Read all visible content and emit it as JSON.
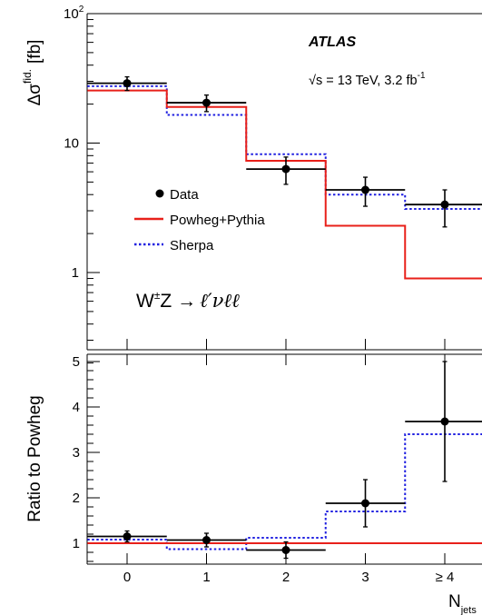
{
  "chart_data": [
    {
      "type": "step",
      "panel": "top",
      "ylabel": "Δσ",
      "ylabel_sup": "fid.",
      "ylabel_unit": "[fb]",
      "yscale": "log",
      "ylim": [
        0.2,
        100
      ],
      "yticks": [
        {
          "value": 100,
          "label": "10",
          "sup": "2"
        },
        {
          "value": 10,
          "label": "10",
          "sup": ""
        },
        {
          "value": 1,
          "label": "1",
          "sup": ""
        }
      ],
      "experiment": "ATLAS",
      "energy_text": "√s = 13 TeV, 3.2 fb",
      "energy_sup": "-1",
      "process": "W±Z → ℓ′νℓℓ",
      "process_parts": {
        "w": "W",
        "pm": "±",
        "z": "Z →",
        "leptons": "ℓ′νℓℓ"
      },
      "legend_placement": "center-left",
      "legend": {
        "data": "Data",
        "powheg": "Powheg+Pythia",
        "sherpa": "Sherpa"
      },
      "data": {
        "x": [
          0,
          1,
          2,
          3,
          4
        ],
        "y": [
          29,
          20.5,
          6.3,
          4.35,
          3.35
        ],
        "err_up": [
          3.5,
          3.0,
          1.5,
          1.1,
          1.0
        ],
        "err_down": [
          3.5,
          3.0,
          1.5,
          1.1,
          1.1
        ]
      },
      "series": [
        {
          "name": "Powheg+Pythia",
          "color": "#e8201a",
          "style": "solid",
          "values": [
            25.5,
            19.0,
            7.3,
            2.3,
            0.9
          ]
        },
        {
          "name": "Sherpa",
          "color": "#1f1fe0",
          "style": "dotted",
          "values": [
            27.5,
            16.5,
            8.2,
            4.0,
            3.1
          ]
        }
      ]
    },
    {
      "type": "step",
      "panel": "bottom",
      "ylabel": "Ratio to Powheg",
      "xlabel": "N",
      "xlabel_sub": "jets",
      "ylim": [
        0.5,
        5.3
      ],
      "yticks": [
        1,
        2,
        3,
        4,
        5
      ],
      "categories": [
        "0",
        "1",
        "2",
        "3",
        "≥ 4"
      ],
      "data": {
        "x": [
          0,
          1,
          2,
          3,
          4
        ],
        "y": [
          1.15,
          1.07,
          0.85,
          1.88,
          3.68
        ],
        "err_up": [
          0.12,
          0.15,
          0.18,
          0.52,
          1.32
        ],
        "err_down": [
          0.12,
          0.15,
          0.18,
          0.52,
          1.32
        ]
      },
      "series": [
        {
          "name": "Powheg+Pythia",
          "color": "#e8201a",
          "style": "solid",
          "values": [
            1.0,
            1.0,
            1.0,
            1.0,
            1.0
          ]
        },
        {
          "name": "Sherpa",
          "color": "#1f1fe0",
          "style": "dotted",
          "values": [
            1.08,
            0.87,
            1.12,
            1.7,
            3.4
          ]
        }
      ]
    }
  ]
}
